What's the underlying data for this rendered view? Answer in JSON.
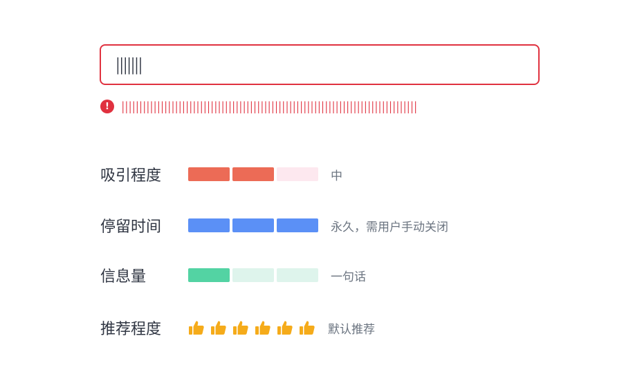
{
  "input": {
    "value": "|||||||"
  },
  "error": {
    "message": "|||||||||||||||||||||||||||||||||||||||||||||||||||||||||||||||||||||||||||||||||||",
    "icon": "!"
  },
  "metrics": [
    {
      "label": "吸引程度",
      "level": 2,
      "total": 3,
      "filled_color": "#ec6b56",
      "empty_color": "#fde8ef",
      "description": "中"
    },
    {
      "label": "停留时间",
      "level": 3,
      "total": 3,
      "filled_color": "#5b90f6",
      "empty_color": "#e3edff",
      "description": "永久，需用户手动关闭"
    },
    {
      "label": "信息量",
      "level": 1,
      "total": 3,
      "filled_color": "#53d3a3",
      "empty_color": "#def4ec",
      "description": "一句话"
    }
  ],
  "recommendation": {
    "label": "推荐程度",
    "thumbs_count": 6,
    "thumb_color": "#f5ab1a",
    "icon": "thumbs-up-icon",
    "description": "默认推荐"
  }
}
